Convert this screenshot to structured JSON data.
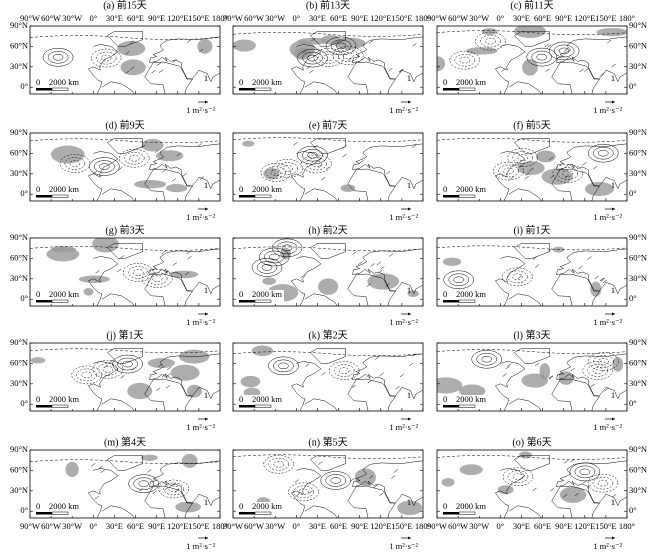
{
  "panels": [
    {
      "title": "(a) 前15天"
    },
    {
      "title": "(b) 前13天"
    },
    {
      "title": "(c) 前11天"
    },
    {
      "title": "(d) 前9天"
    },
    {
      "title": "(e) 前7天"
    },
    {
      "title": "(f) 前5天"
    },
    {
      "title": "(g) 前3天"
    },
    {
      "title": "(h) 前2天"
    },
    {
      "title": "(i) 前1天"
    },
    {
      "title": "(j) 第1天"
    },
    {
      "title": "(k) 第2天"
    },
    {
      "title": "(l) 第3天"
    },
    {
      "title": "(m) 第4天"
    },
    {
      "title": "(n) 第5天"
    },
    {
      "title": "(o) 第6天"
    }
  ],
  "lat_labels": [
    "90°N",
    "60°N",
    "30°N",
    "0°"
  ],
  "lon_labels": [
    "90°W",
    "60°W",
    "30°W",
    "0°",
    "30°E",
    "60°E",
    "90°E",
    "120°E",
    "150°E",
    "180°"
  ],
  "scale_zero": "0",
  "scale_distance": "2000 km",
  "reference_value": "1",
  "reference_unit": "1 m²·s⁻²"
}
